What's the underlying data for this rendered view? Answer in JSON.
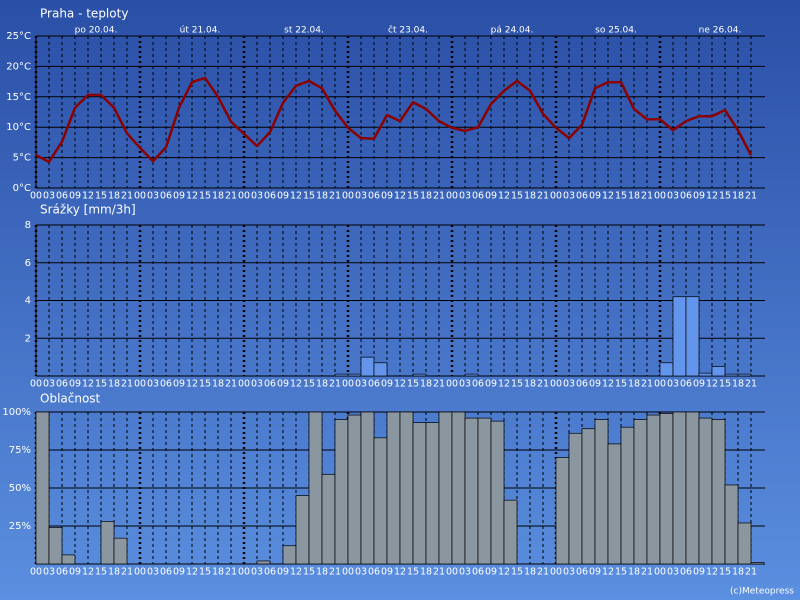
{
  "chart_data": [
    {
      "type": "line",
      "title": "Praha - teploty",
      "day_labels": [
        "po 20.04.",
        "út 21.04.",
        "st 22.04.",
        "čt 23.04.",
        "pá 24.04.",
        "so 25.04.",
        "ne 26.04."
      ],
      "categories": [
        "00",
        "03",
        "06",
        "09",
        "12",
        "15",
        "18",
        "21",
        "00",
        "03",
        "06",
        "09",
        "12",
        "15",
        "18",
        "21",
        "00",
        "03",
        "06",
        "09",
        "12",
        "15",
        "18",
        "21",
        "00",
        "03",
        "06",
        "09",
        "12",
        "15",
        "18",
        "21",
        "00",
        "03",
        "06",
        "09",
        "12",
        "15",
        "18",
        "21",
        "00",
        "03",
        "06",
        "09",
        "12",
        "15",
        "18",
        "21",
        "00",
        "03",
        "06",
        "09",
        "12",
        "15",
        "18",
        "21"
      ],
      "values": [
        5.4,
        4.3,
        7.6,
        13.2,
        15.3,
        15.3,
        13.2,
        9.0,
        6.6,
        4.4,
        6.7,
        13.2,
        17.4,
        18.1,
        15.0,
        10.9,
        8.9,
        6.9,
        9.2,
        14.0,
        16.8,
        17.6,
        16.4,
        12.7,
        9.9,
        8.2,
        8.1,
        12.0,
        11.0,
        14.1,
        13.0,
        11.0,
        9.9,
        9.4,
        10.0,
        13.8,
        16.0,
        17.6,
        16.0,
        12.2,
        9.9,
        8.2,
        10.4,
        16.4,
        17.4,
        17.4,
        13.0,
        11.3,
        11.3,
        9.5,
        11.0,
        11.8,
        11.8,
        12.8,
        9.5,
        5.4
      ],
      "color": "#8b0000",
      "ylim": [
        0,
        25
      ],
      "yticks": [
        {
          "value": 0,
          "label": "0°C"
        },
        {
          "value": 5,
          "label": "5°C"
        },
        {
          "value": 10,
          "label": "10°C"
        },
        {
          "value": 15,
          "label": "15°C"
        },
        {
          "value": 20,
          "label": "20°C"
        },
        {
          "value": 25,
          "label": "25°C"
        }
      ],
      "grid": true
    },
    {
      "type": "bar",
      "title": "Srážky [mm/3h]",
      "categories": [
        "00",
        "03",
        "06",
        "09",
        "12",
        "15",
        "18",
        "21",
        "00",
        "03",
        "06",
        "09",
        "12",
        "15",
        "18",
        "21",
        "00",
        "03",
        "06",
        "09",
        "12",
        "15",
        "18",
        "21",
        "00",
        "03",
        "06",
        "09",
        "12",
        "15",
        "18",
        "21",
        "00",
        "03",
        "06",
        "09",
        "12",
        "15",
        "18",
        "21",
        "00",
        "03",
        "06",
        "09",
        "12",
        "15",
        "18",
        "21",
        "00",
        "03",
        "06",
        "09",
        "12",
        "15",
        "18",
        "21"
      ],
      "values": [
        0,
        0,
        0,
        0,
        0,
        0,
        0,
        0,
        0,
        0,
        0,
        0,
        0,
        0,
        0,
        0,
        0,
        0,
        0,
        0,
        0,
        0,
        0,
        0.1,
        0.1,
        1.0,
        0.7,
        0,
        0,
        0.1,
        0,
        0,
        0,
        0.1,
        0,
        0,
        0,
        0,
        0,
        0,
        0,
        0,
        0,
        0,
        0,
        0,
        0,
        0,
        0.7,
        4.2,
        4.2,
        0.15,
        0.5,
        0.1,
        0.1,
        0
      ],
      "color": "#6495ed",
      "ylim": [
        0,
        8
      ],
      "yticks": [
        2,
        4,
        6,
        8
      ],
      "grid": true
    },
    {
      "type": "bar",
      "title": "Oblačnost",
      "categories": [
        "00",
        "03",
        "06",
        "09",
        "12",
        "15",
        "18",
        "21",
        "00",
        "03",
        "06",
        "09",
        "12",
        "15",
        "18",
        "21",
        "00",
        "03",
        "06",
        "09",
        "12",
        "15",
        "18",
        "21",
        "00",
        "03",
        "06",
        "09",
        "12",
        "15",
        "18",
        "21",
        "00",
        "03",
        "06",
        "09",
        "12",
        "15",
        "18",
        "21",
        "00",
        "03",
        "06",
        "09",
        "12",
        "15",
        "18",
        "21",
        "00",
        "03",
        "06",
        "09",
        "12",
        "15",
        "18",
        "21"
      ],
      "values": [
        100,
        24,
        6,
        0,
        0,
        28,
        17,
        0,
        0,
        0,
        0,
        0,
        0,
        0,
        0,
        0,
        0,
        2,
        0,
        12,
        45,
        100,
        59,
        95,
        98,
        100,
        83,
        100,
        100,
        93,
        93,
        100,
        100,
        96,
        96,
        94,
        42,
        0,
        0,
        0,
        70,
        86,
        89,
        95,
        79,
        90,
        95,
        98,
        99,
        100,
        100,
        96,
        95,
        52,
        27,
        1
      ],
      "color": "#8a96a0",
      "ylim": [
        0,
        100
      ],
      "yticks": [
        {
          "value": 25,
          "label": "25%"
        },
        {
          "value": 50,
          "label": "50%"
        },
        {
          "value": 75,
          "label": "75%"
        },
        {
          "value": 100,
          "label": "100%"
        }
      ],
      "grid": true
    }
  ],
  "footer": "(c)Meteopress"
}
